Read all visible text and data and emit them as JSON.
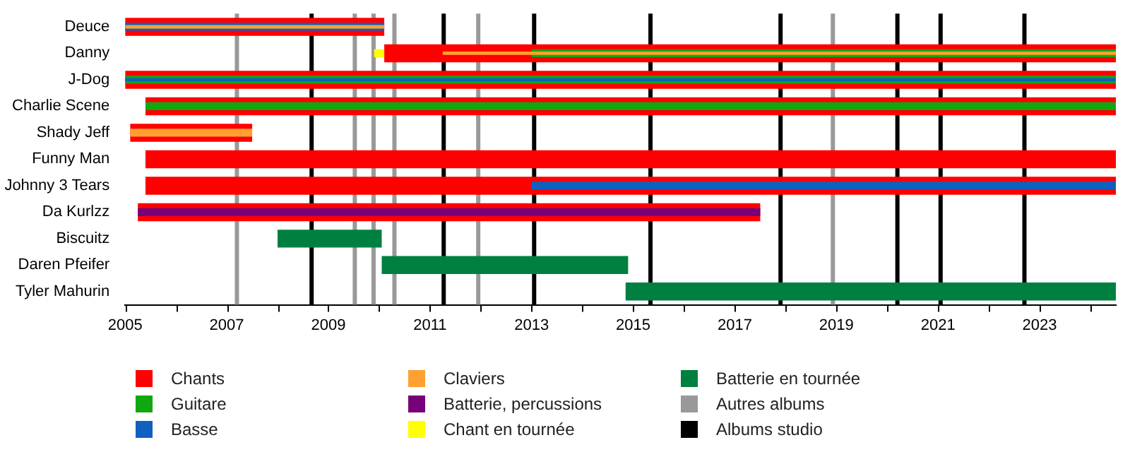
{
  "chart_data": {
    "type": "bar",
    "orientation": "horizontal",
    "legend": "bottom",
    "xlim": [
      2005,
      2024.5
    ],
    "xticks": [
      2005,
      {
        "value": 2006,
        "label": null
      },
      2007,
      {
        "value": 2008,
        "label": null
      },
      2009,
      {
        "value": 2010,
        "label": null
      },
      2011,
      {
        "value": 2012,
        "label": null
      },
      2013,
      {
        "value": 2014,
        "label": null
      },
      2015,
      {
        "value": 2016,
        "label": null
      },
      2017,
      {
        "value": 2018,
        "label": null
      },
      2019,
      {
        "value": 2020,
        "label": null
      },
      2021,
      {
        "value": 2022,
        "label": null
      },
      2023,
      {
        "value": 2024,
        "label": null
      }
    ],
    "categories": [
      "Deuce",
      "Danny",
      "J-Dog",
      "Charlie Scene",
      "Shady Jeff",
      "Funny Man",
      "Johnny 3 Tears",
      "Da Kurlzz",
      "Biscuitz",
      "Daren Pfeifer",
      "Tyler Mahurin"
    ],
    "series": [
      {
        "name": "Chants",
        "color": "#ff0000",
        "base": [
          2005,
          2010.1,
          2005,
          2005.4,
          2005.1,
          2005.4,
          2005.4,
          2005.25,
          null,
          null,
          null
        ],
        "values": [
          5.1,
          14.4,
          19.5,
          19.1,
          2.4,
          19.1,
          19.1,
          12.25,
          null,
          null,
          null
        ]
      },
      {
        "name": "Guitare",
        "color": "#10a810",
        "base": [
          null,
          2013,
          2005,
          2005.4,
          null,
          null,
          null,
          null,
          null,
          null,
          null
        ],
        "values": [
          null,
          11.5,
          19.5,
          19.1,
          null,
          null,
          null,
          null,
          null,
          null,
          null
        ]
      },
      {
        "name": "Basse",
        "color": "#1060c0",
        "base": [
          2005,
          null,
          2005,
          null,
          null,
          null,
          2013,
          null,
          null,
          null,
          null
        ],
        "values": [
          5.1,
          null,
          19.5,
          null,
          null,
          null,
          11.5,
          null,
          null,
          null,
          null
        ]
      },
      {
        "name": "Claviers",
        "color": "#ffa030",
        "base": [
          2005,
          2011.25,
          null,
          null,
          2005.1,
          null,
          null,
          null,
          null,
          null,
          null
        ],
        "values": [
          5.1,
          13.25,
          null,
          null,
          2.4,
          null,
          null,
          null,
          null,
          null,
          null
        ]
      },
      {
        "name": "Batterie, percussions",
        "color": "#780078",
        "base": [
          null,
          null,
          null,
          null,
          null,
          null,
          null,
          2005.25,
          null,
          null,
          null
        ],
        "values": [
          null,
          null,
          null,
          null,
          null,
          null,
          null,
          12.25,
          null,
          null,
          null
        ]
      },
      {
        "name": "Chant en tournée",
        "color": "#ffff00",
        "base": [
          null,
          2009.9,
          null,
          null,
          null,
          null,
          null,
          null,
          null,
          null,
          null
        ],
        "values": [
          null,
          0.2,
          null,
          null,
          null,
          null,
          null,
          null,
          null,
          null,
          null
        ]
      },
      {
        "name": "Batterie en tournée",
        "color": "#008040",
        "base": [
          null,
          null,
          null,
          null,
          null,
          null,
          null,
          null,
          2008,
          2010.05,
          2014.85
        ],
        "values": [
          null,
          null,
          null,
          null,
          null,
          null,
          null,
          null,
          2.05,
          4.85,
          9.65
        ]
      }
    ],
    "ref_lines": [
      {
        "axis": "x",
        "value": 2007.2,
        "label": "Autres albums",
        "color": "#999999"
      },
      {
        "axis": "x",
        "value": 2008.67,
        "label": "Albums studio",
        "color": "#000000"
      },
      {
        "axis": "x",
        "value": 2009.52,
        "color": "#999999"
      },
      {
        "axis": "x",
        "value": 2009.89,
        "color": "#999999"
      },
      {
        "axis": "x",
        "value": 2010.3,
        "color": "#999999"
      },
      {
        "axis": "x",
        "value": 2011.27,
        "color": "#000000"
      },
      {
        "axis": "x",
        "value": 2011.95,
        "color": "#999999"
      },
      {
        "axis": "x",
        "value": 2013.05,
        "color": "#000000"
      },
      {
        "axis": "x",
        "value": 2015.34,
        "color": "#000000"
      },
      {
        "axis": "x",
        "value": 2017.9,
        "color": "#000000"
      },
      {
        "axis": "x",
        "value": 2018.93,
        "color": "#999999"
      },
      {
        "axis": "x",
        "value": 2020.2,
        "color": "#000000"
      },
      {
        "axis": "x",
        "value": 2021.05,
        "color": "#000000"
      },
      {
        "axis": "x",
        "value": 2022.7,
        "color": "#000000"
      }
    ]
  }
}
